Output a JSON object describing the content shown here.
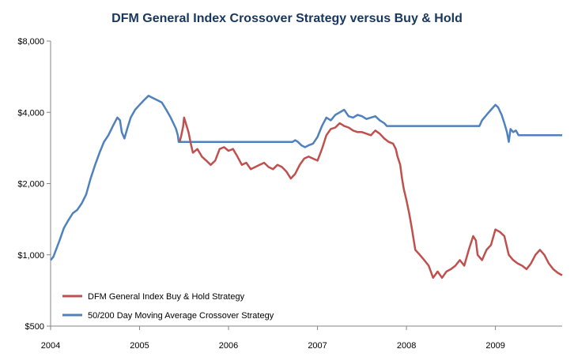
{
  "chart_data": {
    "type": "line",
    "title": "DFM General Index Crossover Strategy versus Buy & Hold",
    "xlabel": "",
    "ylabel": "",
    "y_scale": "log",
    "ylim": [
      500,
      8000
    ],
    "y_ticks": [
      500,
      1000,
      2000,
      4000,
      8000
    ],
    "y_tick_labels": [
      "$500",
      "$1,000",
      "$2,000",
      "$4,000",
      "$8,000"
    ],
    "xlim": [
      2004,
      2009.75
    ],
    "x_ticks": [
      2004,
      2005,
      2006,
      2007,
      2008,
      2009
    ],
    "x_tick_labels": [
      "2004",
      "2005",
      "2006",
      "2007",
      "2008",
      "2009"
    ],
    "legend_position": "bottom-left",
    "series": [
      {
        "name": "DFM General Index  Buy & Hold Strategy",
        "color": "#c0504d",
        "points": [
          [
            2005.45,
            3000
          ],
          [
            2005.47,
            3200
          ],
          [
            2005.49,
            3500
          ],
          [
            2005.5,
            3800
          ],
          [
            2005.52,
            3600
          ],
          [
            2005.55,
            3300
          ],
          [
            2005.58,
            2900
          ],
          [
            2005.6,
            2700
          ],
          [
            2005.65,
            2800
          ],
          [
            2005.7,
            2600
          ],
          [
            2005.75,
            2500
          ],
          [
            2005.8,
            2400
          ],
          [
            2005.85,
            2500
          ],
          [
            2005.9,
            2800
          ],
          [
            2005.95,
            2850
          ],
          [
            2006.0,
            2750
          ],
          [
            2006.05,
            2800
          ],
          [
            2006.1,
            2600
          ],
          [
            2006.15,
            2400
          ],
          [
            2006.2,
            2450
          ],
          [
            2006.25,
            2300
          ],
          [
            2006.3,
            2350
          ],
          [
            2006.35,
            2400
          ],
          [
            2006.4,
            2450
          ],
          [
            2006.45,
            2350
          ],
          [
            2006.5,
            2300
          ],
          [
            2006.55,
            2400
          ],
          [
            2006.6,
            2350
          ],
          [
            2006.65,
            2250
          ],
          [
            2006.7,
            2100
          ],
          [
            2006.75,
            2200
          ],
          [
            2006.8,
            2400
          ],
          [
            2006.85,
            2550
          ],
          [
            2006.9,
            2600
          ],
          [
            2006.95,
            2550
          ],
          [
            2007.0,
            2500
          ],
          [
            2007.05,
            2800
          ],
          [
            2007.1,
            3200
          ],
          [
            2007.15,
            3400
          ],
          [
            2007.2,
            3450
          ],
          [
            2007.25,
            3600
          ],
          [
            2007.3,
            3500
          ],
          [
            2007.35,
            3450
          ],
          [
            2007.4,
            3350
          ],
          [
            2007.45,
            3300
          ],
          [
            2007.5,
            3300
          ],
          [
            2007.55,
            3250
          ],
          [
            2007.6,
            3200
          ],
          [
            2007.65,
            3350
          ],
          [
            2007.7,
            3250
          ],
          [
            2007.75,
            3100
          ],
          [
            2007.8,
            3000
          ],
          [
            2007.85,
            2950
          ],
          [
            2007.88,
            2800
          ],
          [
            2007.9,
            2600
          ],
          [
            2007.93,
            2400
          ],
          [
            2007.95,
            2100
          ],
          [
            2007.97,
            1900
          ],
          [
            2008.0,
            1700
          ],
          [
            2008.03,
            1500
          ],
          [
            2008.06,
            1300
          ],
          [
            2008.1,
            1050
          ],
          [
            2008.15,
            1000
          ],
          [
            2008.2,
            950
          ],
          [
            2008.25,
            900
          ],
          [
            2008.3,
            800
          ],
          [
            2008.35,
            850
          ],
          [
            2008.4,
            800
          ],
          [
            2008.45,
            850
          ],
          [
            2008.5,
            870
          ],
          [
            2008.55,
            900
          ],
          [
            2008.6,
            950
          ],
          [
            2008.65,
            900
          ],
          [
            2008.7,
            1050
          ],
          [
            2008.75,
            1200
          ],
          [
            2008.78,
            1150
          ],
          [
            2008.8,
            1000
          ],
          [
            2008.85,
            950
          ],
          [
            2008.9,
            1050
          ],
          [
            2008.95,
            1100
          ],
          [
            2009.0,
            1280
          ],
          [
            2009.05,
            1250
          ],
          [
            2009.1,
            1200
          ],
          [
            2009.15,
            1000
          ],
          [
            2009.2,
            950
          ],
          [
            2009.25,
            920
          ],
          [
            2009.3,
            900
          ],
          [
            2009.35,
            870
          ],
          [
            2009.4,
            920
          ],
          [
            2009.45,
            1000
          ],
          [
            2009.5,
            1050
          ],
          [
            2009.55,
            1000
          ],
          [
            2009.6,
            920
          ],
          [
            2009.65,
            870
          ],
          [
            2009.7,
            840
          ],
          [
            2009.75,
            820
          ]
        ]
      },
      {
        "name": "50/200 Day Moving Average Crossover Strategy",
        "color": "#4f81bd",
        "points": [
          [
            2004.0,
            950
          ],
          [
            2004.03,
            980
          ],
          [
            2004.06,
            1050
          ],
          [
            2004.1,
            1150
          ],
          [
            2004.15,
            1300
          ],
          [
            2004.2,
            1400
          ],
          [
            2004.25,
            1500
          ],
          [
            2004.3,
            1550
          ],
          [
            2004.35,
            1650
          ],
          [
            2004.4,
            1800
          ],
          [
            2004.45,
            2100
          ],
          [
            2004.5,
            2400
          ],
          [
            2004.55,
            2700
          ],
          [
            2004.6,
            3000
          ],
          [
            2004.65,
            3200
          ],
          [
            2004.7,
            3500
          ],
          [
            2004.75,
            3800
          ],
          [
            2004.78,
            3700
          ],
          [
            2004.8,
            3300
          ],
          [
            2004.83,
            3100
          ],
          [
            2004.86,
            3400
          ],
          [
            2004.9,
            3800
          ],
          [
            2004.95,
            4100
          ],
          [
            2005.0,
            4300
          ],
          [
            2005.05,
            4500
          ],
          [
            2005.1,
            4700
          ],
          [
            2005.15,
            4600
          ],
          [
            2005.2,
            4500
          ],
          [
            2005.25,
            4400
          ],
          [
            2005.3,
            4100
          ],
          [
            2005.35,
            3800
          ],
          [
            2005.38,
            3600
          ],
          [
            2005.41,
            3400
          ],
          [
            2005.43,
            3200
          ],
          [
            2005.44,
            3000
          ],
          [
            2005.5,
            3000
          ],
          [
            2005.6,
            3000
          ],
          [
            2005.7,
            3000
          ],
          [
            2005.8,
            3000
          ],
          [
            2005.9,
            3000
          ],
          [
            2006.0,
            3000
          ],
          [
            2006.2,
            3000
          ],
          [
            2006.4,
            3000
          ],
          [
            2006.6,
            3000
          ],
          [
            2006.72,
            3000
          ],
          [
            2006.75,
            3050
          ],
          [
            2006.78,
            3000
          ],
          [
            2006.82,
            2900
          ],
          [
            2006.86,
            2850
          ],
          [
            2006.9,
            2900
          ],
          [
            2006.95,
            2950
          ],
          [
            2007.0,
            3150
          ],
          [
            2007.05,
            3500
          ],
          [
            2007.1,
            3800
          ],
          [
            2007.15,
            3700
          ],
          [
            2007.2,
            3900
          ],
          [
            2007.25,
            4000
          ],
          [
            2007.3,
            4100
          ],
          [
            2007.35,
            3850
          ],
          [
            2007.4,
            3800
          ],
          [
            2007.45,
            3900
          ],
          [
            2007.5,
            3850
          ],
          [
            2007.55,
            3750
          ],
          [
            2007.6,
            3800
          ],
          [
            2007.65,
            3850
          ],
          [
            2007.7,
            3700
          ],
          [
            2007.75,
            3600
          ],
          [
            2007.78,
            3500
          ],
          [
            2007.8,
            3500
          ],
          [
            2008.0,
            3500
          ],
          [
            2008.2,
            3500
          ],
          [
            2008.4,
            3500
          ],
          [
            2008.6,
            3500
          ],
          [
            2008.8,
            3500
          ],
          [
            2008.82,
            3500
          ],
          [
            2008.85,
            3700
          ],
          [
            2008.9,
            3900
          ],
          [
            2008.95,
            4100
          ],
          [
            2009.0,
            4300
          ],
          [
            2009.03,
            4200
          ],
          [
            2009.07,
            3900
          ],
          [
            2009.1,
            3600
          ],
          [
            2009.13,
            3300
          ],
          [
            2009.15,
            3000
          ],
          [
            2009.17,
            3400
          ],
          [
            2009.2,
            3300
          ],
          [
            2009.23,
            3350
          ],
          [
            2009.26,
            3200
          ],
          [
            2009.3,
            3200
          ],
          [
            2009.5,
            3200
          ],
          [
            2009.75,
            3200
          ]
        ]
      }
    ]
  }
}
